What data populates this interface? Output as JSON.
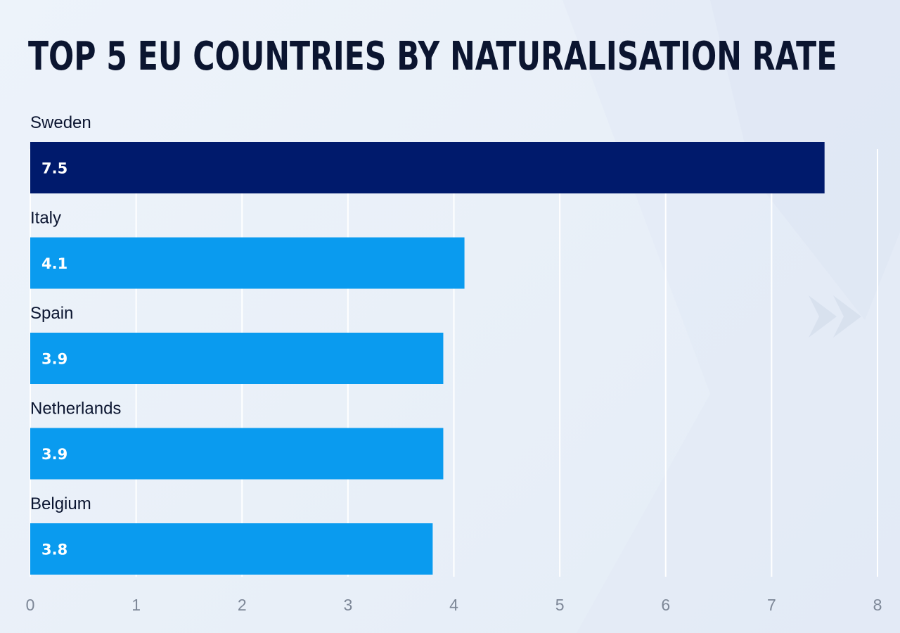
{
  "title": "TOP 5 EU COUNTRIES BY NATURALISATION RATE",
  "colors": {
    "highlight": "#001a6c",
    "bar": "#0a9bef",
    "grid": "#ffffff",
    "text": "#0b1530",
    "tick": "#7d8797"
  },
  "chart_data": {
    "type": "bar",
    "orientation": "horizontal",
    "title": "TOP 5 EU COUNTRIES BY NATURALISATION RATE",
    "categories": [
      "Sweden",
      "Italy",
      "Spain",
      "Netherlands",
      "Belgium"
    ],
    "values": [
      7.5,
      4.1,
      3.9,
      3.9,
      3.8
    ],
    "value_labels": [
      "7.5",
      "4.1",
      "3.9",
      "3.9",
      "3.8"
    ],
    "highlight_index": 0,
    "xlim": [
      0,
      8
    ],
    "xticks": [
      "0",
      "1",
      "2",
      "3",
      "4",
      "5",
      "6",
      "7",
      "8"
    ],
    "xlabel": "",
    "ylabel": "",
    "grid": true,
    "legend": "none"
  }
}
